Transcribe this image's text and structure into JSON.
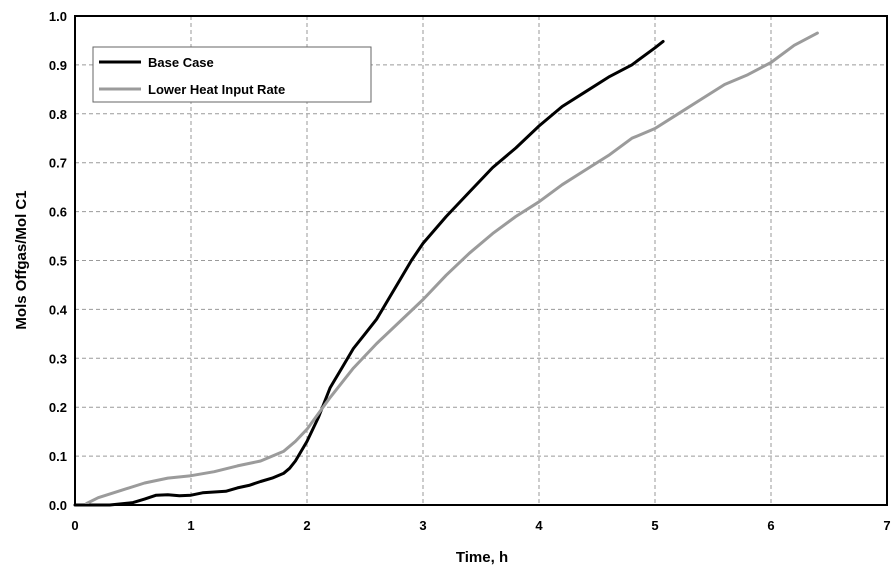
{
  "chart_data": {
    "type": "line",
    "title": "",
    "xlabel": "Time, h",
    "ylabel": "Mols Offgas/Mol C1",
    "xlim": [
      0,
      7
    ],
    "ylim": [
      0,
      1.0
    ],
    "x_ticks": [
      "0",
      "1",
      "2",
      "3",
      "4",
      "5",
      "6",
      "7"
    ],
    "y_ticks": [
      "0.0",
      "0.1",
      "0.2",
      "0.3",
      "0.4",
      "0.5",
      "0.6",
      "0.7",
      "0.8",
      "0.9",
      "1.0"
    ],
    "grid": true,
    "legend_position": "top-left",
    "series": [
      {
        "name": "Base Case",
        "color": "#000000",
        "points": [
          [
            0.0,
            0.0
          ],
          [
            0.3,
            0.0
          ],
          [
            0.5,
            0.005
          ],
          [
            0.6,
            0.012
          ],
          [
            0.7,
            0.02
          ],
          [
            0.8,
            0.021
          ],
          [
            0.9,
            0.019
          ],
          [
            1.0,
            0.02
          ],
          [
            1.1,
            0.025
          ],
          [
            1.3,
            0.028
          ],
          [
            1.4,
            0.035
          ],
          [
            1.5,
            0.04
          ],
          [
            1.6,
            0.048
          ],
          [
            1.7,
            0.055
          ],
          [
            1.8,
            0.065
          ],
          [
            1.85,
            0.075
          ],
          [
            1.9,
            0.09
          ],
          [
            2.0,
            0.13
          ],
          [
            2.1,
            0.18
          ],
          [
            2.2,
            0.24
          ],
          [
            2.3,
            0.28
          ],
          [
            2.4,
            0.32
          ],
          [
            2.5,
            0.35
          ],
          [
            2.6,
            0.38
          ],
          [
            2.7,
            0.42
          ],
          [
            2.8,
            0.46
          ],
          [
            2.9,
            0.5
          ],
          [
            3.0,
            0.535
          ],
          [
            3.2,
            0.59
          ],
          [
            3.4,
            0.64
          ],
          [
            3.6,
            0.69
          ],
          [
            3.8,
            0.73
          ],
          [
            4.0,
            0.775
          ],
          [
            4.2,
            0.815
          ],
          [
            4.4,
            0.845
          ],
          [
            4.6,
            0.875
          ],
          [
            4.8,
            0.9
          ],
          [
            5.0,
            0.935
          ],
          [
            5.07,
            0.948
          ]
        ]
      },
      {
        "name": "Lower Heat Input Rate",
        "color": "#9b9b9b",
        "points": [
          [
            0.1,
            0.003
          ],
          [
            0.2,
            0.015
          ],
          [
            0.4,
            0.03
          ],
          [
            0.6,
            0.045
          ],
          [
            0.8,
            0.055
          ],
          [
            1.0,
            0.06
          ],
          [
            1.2,
            0.068
          ],
          [
            1.4,
            0.08
          ],
          [
            1.6,
            0.09
          ],
          [
            1.8,
            0.11
          ],
          [
            1.9,
            0.13
          ],
          [
            2.0,
            0.155
          ],
          [
            2.2,
            0.22
          ],
          [
            2.4,
            0.28
          ],
          [
            2.6,
            0.33
          ],
          [
            2.8,
            0.375
          ],
          [
            3.0,
            0.42
          ],
          [
            3.2,
            0.47
          ],
          [
            3.4,
            0.515
          ],
          [
            3.6,
            0.555
          ],
          [
            3.8,
            0.59
          ],
          [
            4.0,
            0.62
          ],
          [
            4.2,
            0.655
          ],
          [
            4.4,
            0.685
          ],
          [
            4.6,
            0.715
          ],
          [
            4.8,
            0.75
          ],
          [
            5.0,
            0.77
          ],
          [
            5.2,
            0.8
          ],
          [
            5.4,
            0.83
          ],
          [
            5.6,
            0.86
          ],
          [
            5.8,
            0.88
          ],
          [
            6.0,
            0.905
          ],
          [
            6.2,
            0.94
          ],
          [
            6.4,
            0.965
          ]
        ]
      }
    ]
  }
}
